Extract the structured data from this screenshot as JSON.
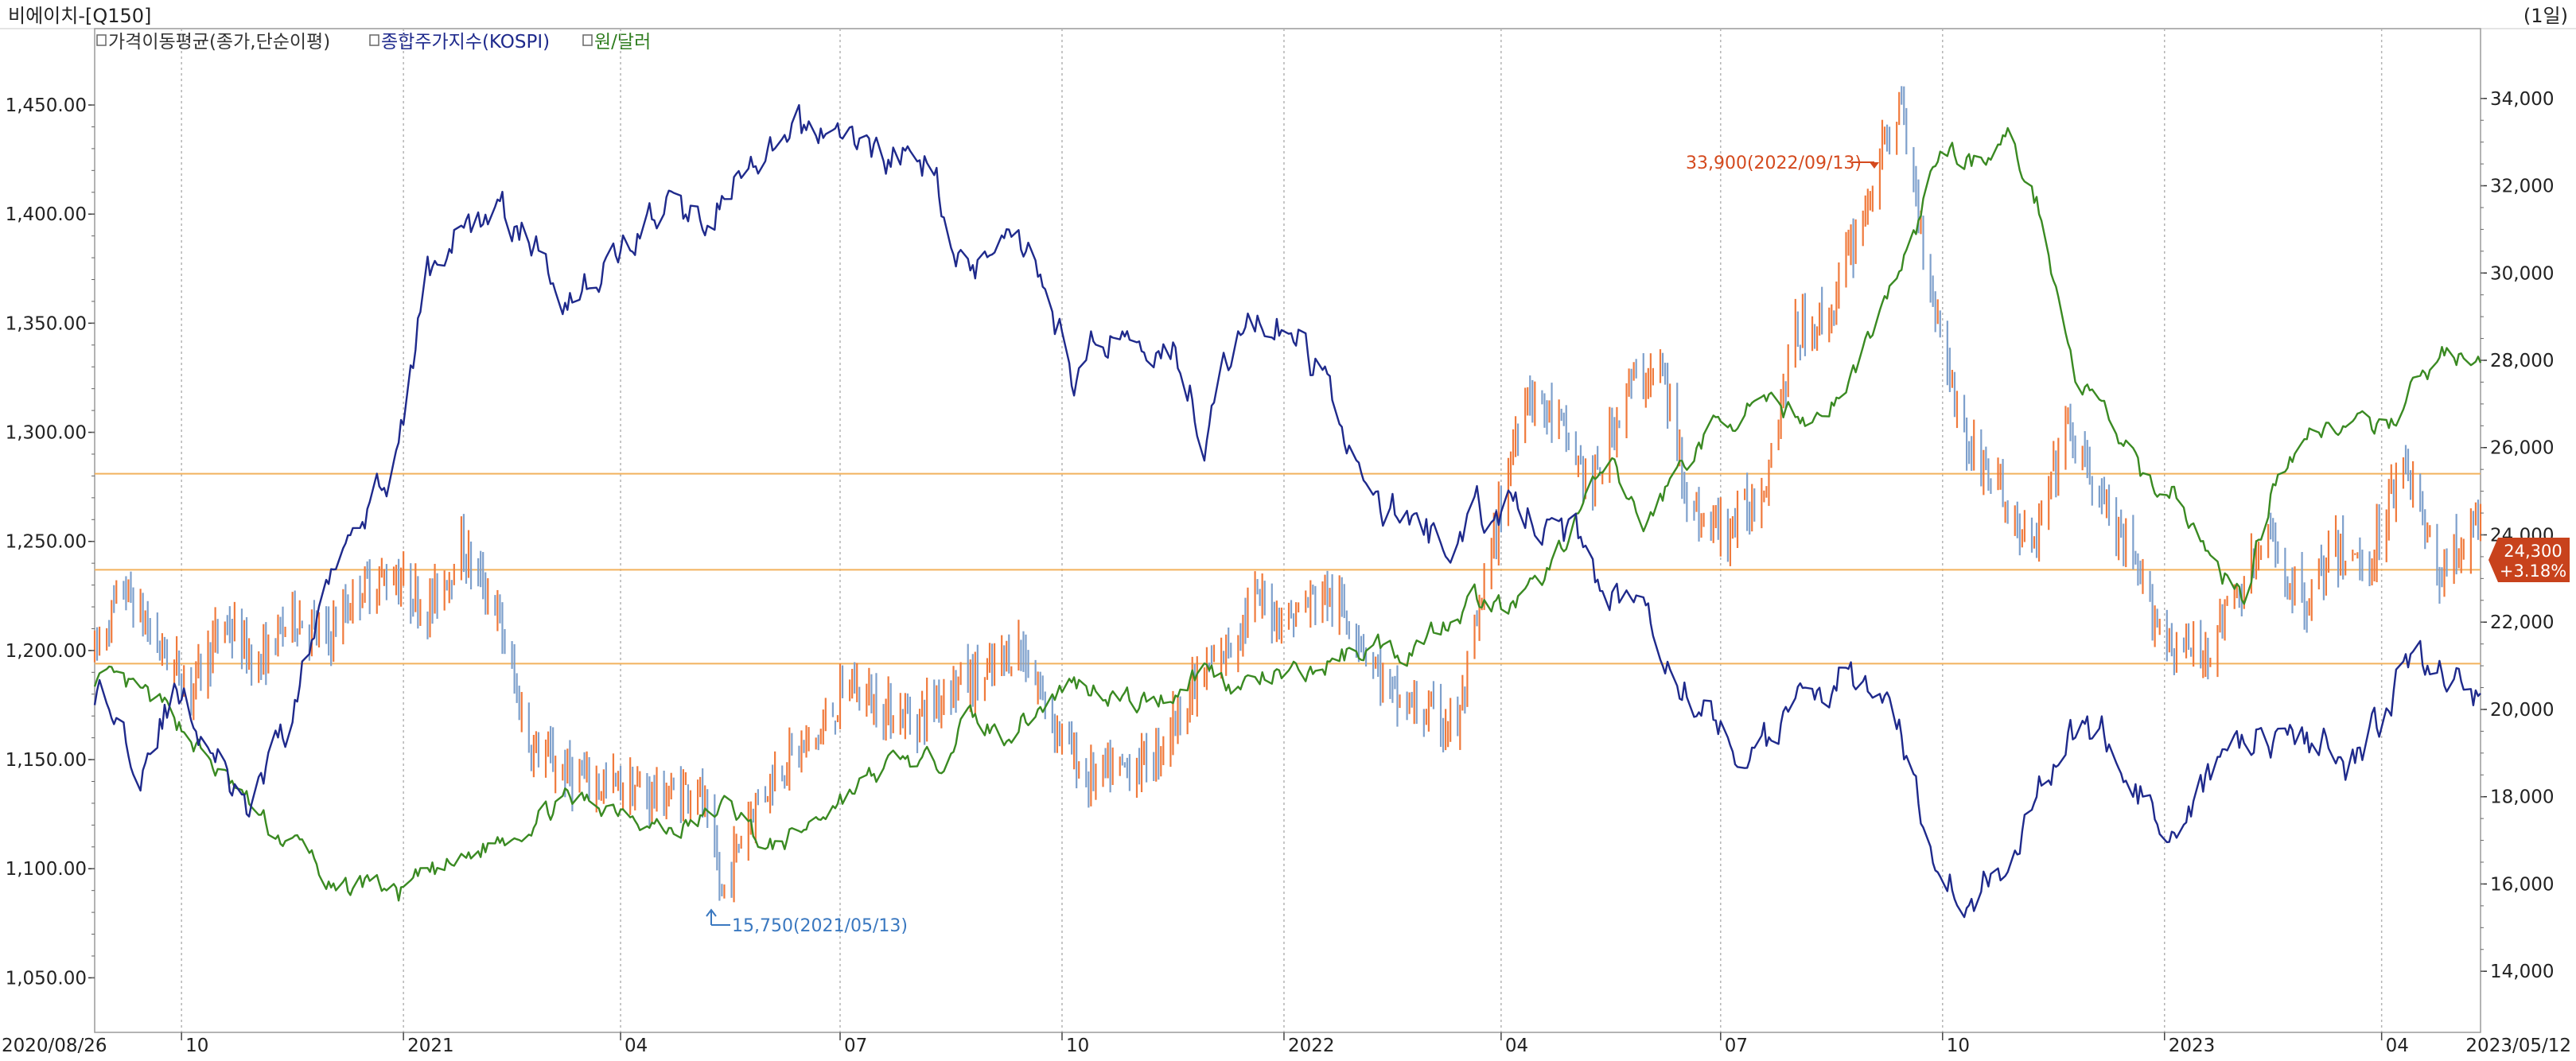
{
  "header": {
    "title": "비에이치-[Q150]",
    "period": "(1일)"
  },
  "legend": [
    {
      "label": "가격이동평균(종가,단순이평)",
      "color": "#333333"
    },
    {
      "label": "종합주가지수(KOSPI)",
      "color": "#1f2a8c"
    },
    {
      "label": "원/달러",
      "color": "#2f7d1f"
    }
  ],
  "colors": {
    "up": "#f07a3c",
    "down": "#7ea0cc",
    "kospi": "#1f2a8c",
    "usd": "#3a8a22",
    "hline": "#f2b25e",
    "annotation_high": "#d44a1e",
    "annotation_low": "#3a78c0",
    "current_price_bg": "#c8421c"
  },
  "annotations": {
    "high": "33,900(2022/09/13)",
    "low": "15,750(2021/05/13)"
  },
  "current_price": {
    "price": "24,300",
    "change": "+3.18%"
  },
  "chart_data": {
    "type": "line",
    "x_range": [
      "2020/08/26",
      "2023/05/12"
    ],
    "x_ticks": [
      "2020/08/26",
      "10",
      "2021",
      "04",
      "07",
      "10",
      "2022",
      "04",
      "07",
      "10",
      "2023",
      "04",
      "2023/05/12"
    ],
    "left_axis": {
      "series": "원/달러",
      "range": [
        1025,
        1485
      ],
      "ticks": [
        "1,450.00",
        "1,400.00",
        "1,350.00",
        "1,300.00",
        "1,250.00",
        "1,200.00",
        "1,150.00",
        "1,100.00",
        "1,050.00"
      ]
    },
    "right_axis": {
      "series": "비에이치",
      "range": [
        12600,
        35600
      ],
      "ticks": [
        "34,000",
        "32,000",
        "30,000",
        "28,000",
        "26,000",
        "24,000",
        "22,000",
        "20,000",
        "18,000",
        "16,000",
        "14,000"
      ]
    },
    "horizontal_lines": [
      25400,
      23200,
      21050
    ],
    "high": {
      "value": 33900,
      "date": "2022/09/13"
    },
    "low": {
      "value": 15750,
      "date": "2021/05/13"
    },
    "last": {
      "value": 24300,
      "change_pct": 3.18
    },
    "series": [
      {
        "name": "비에이치",
        "style": "daily price bars",
        "points": [
          [
            "2020/08/26",
            21300
          ],
          [
            "2020/09/07",
            22800
          ],
          [
            "2020/09/21",
            21500
          ],
          [
            "2020/10/05",
            20500
          ],
          [
            "2020/10/19",
            22000
          ],
          [
            "2020/11/02",
            21000
          ],
          [
            "2020/11/16",
            22200
          ],
          [
            "2020/11/30",
            21600
          ],
          [
            "2020/12/14",
            22800
          ],
          [
            "2020/12/28",
            23100
          ],
          [
            "2021/01/11",
            22300
          ],
          [
            "2021/01/25",
            23700
          ],
          [
            "2021/02/08",
            22400
          ],
          [
            "2021/02/22",
            19200
          ],
          [
            "2021/03/08",
            18600
          ],
          [
            "2021/03/22",
            18300
          ],
          [
            "2021/04/05",
            18200
          ],
          [
            "2021/04/19",
            18000
          ],
          [
            "2021/05/03",
            18300
          ],
          [
            "2021/05/13",
            15750
          ],
          [
            "2021/05/24",
            17600
          ],
          [
            "2021/06/07",
            18800
          ],
          [
            "2021/06/21",
            19300
          ],
          [
            "2021/07/05",
            20600
          ],
          [
            "2021/07/19",
            20000
          ],
          [
            "2021/08/02",
            19800
          ],
          [
            "2021/08/16",
            20600
          ],
          [
            "2021/08/30",
            20700
          ],
          [
            "2021/09/13",
            21500
          ],
          [
            "2021/09/27",
            19800
          ],
          [
            "2021/10/11",
            18400
          ],
          [
            "2021/10/25",
            18600
          ],
          [
            "2021/11/08",
            18900
          ],
          [
            "2021/11/22",
            20300
          ],
          [
            "2021/12/06",
            21200
          ],
          [
            "2021/12/20",
            22500
          ],
          [
            "2022/01/03",
            22100
          ],
          [
            "2022/01/17",
            22700
          ],
          [
            "2022/01/31",
            21900
          ],
          [
            "2022/02/14",
            20300
          ],
          [
            "2022/02/28",
            19900
          ],
          [
            "2022/03/14",
            19600
          ],
          [
            "2022/03/28",
            23600
          ],
          [
            "2022/04/11",
            27400
          ],
          [
            "2022/04/25",
            26500
          ],
          [
            "2022/05/09",
            25000
          ],
          [
            "2022/05/23",
            27400
          ],
          [
            "2022/06/06",
            27800
          ],
          [
            "2022/06/20",
            24400
          ],
          [
            "2022/07/04",
            24100
          ],
          [
            "2022/07/18",
            25000
          ],
          [
            "2022/08/01",
            28600
          ],
          [
            "2022/08/15",
            29000
          ],
          [
            "2022/08/29",
            31400
          ],
          [
            "2022/09/13",
            33900
          ],
          [
            "2022/09/26",
            29800
          ],
          [
            "2022/10/10",
            26200
          ],
          [
            "2022/10/24",
            25100
          ],
          [
            "2022/11/07",
            23500
          ],
          [
            "2022/11/21",
            26500
          ],
          [
            "2022/12/05",
            24900
          ],
          [
            "2022/12/19",
            23200
          ],
          [
            "2023/01/02",
            21600
          ],
          [
            "2023/01/16",
            21200
          ],
          [
            "2023/01/30",
            22500
          ],
          [
            "2023/02/13",
            23900
          ],
          [
            "2023/02/27",
            22400
          ],
          [
            "2023/03/13",
            23600
          ],
          [
            "2023/03/27",
            23300
          ],
          [
            "2023/04/10",
            25900
          ],
          [
            "2023/04/24",
            23100
          ],
          [
            "2023/05/12",
            24300
          ]
        ]
      },
      {
        "name": "종합주가지수(KOSPI)",
        "points": [
          [
            "2020/08/26",
            1183
          ],
          [
            "2020/09/14",
            1152
          ],
          [
            "2020/09/28",
            1180
          ],
          [
            "2020/10/13",
            1158
          ],
          [
            "2020/10/27",
            1122
          ],
          [
            "2020/11/09",
            1150
          ],
          [
            "2020/11/23",
            1198
          ],
          [
            "2020/12/04",
            1249
          ],
          [
            "2020/12/18",
            1272
          ],
          [
            "2020/12/30",
            1288
          ],
          [
            "2021/01/11",
            1374
          ],
          [
            "2021/01/25",
            1392
          ],
          [
            "2021/02/08",
            1403
          ],
          [
            "2021/02/22",
            1388
          ],
          [
            "2021/03/08",
            1365
          ],
          [
            "2021/03/22",
            1372
          ],
          [
            "2021/04/05",
            1387
          ],
          [
            "2021/04/19",
            1405
          ],
          [
            "2021/05/03",
            1397
          ],
          [
            "2021/05/17",
            1412
          ],
          [
            "2021/06/01",
            1421
          ],
          [
            "2021/06/14",
            1437
          ],
          [
            "2021/06/28",
            1440
          ],
          [
            "2021/07/12",
            1430
          ],
          [
            "2021/07/26",
            1426
          ],
          [
            "2021/08/09",
            1420
          ],
          [
            "2021/08/23",
            1371
          ],
          [
            "2021/09/06",
            1399
          ],
          [
            "2021/09/20",
            1382
          ],
          [
            "2021/10/05",
            1326
          ],
          [
            "2021/10/19",
            1345
          ],
          [
            "2021/11/01",
            1347
          ],
          [
            "2021/11/15",
            1342
          ],
          [
            "2021/11/29",
            1302
          ],
          [
            "2021/12/13",
            1347
          ],
          [
            "2021/12/27",
            1349
          ],
          [
            "2022/01/10",
            1338
          ],
          [
            "2022/01/24",
            1310
          ],
          [
            "2022/02/07",
            1263
          ],
          [
            "2022/02/21",
            1263
          ],
          [
            "2022/03/07",
            1248
          ],
          [
            "2022/03/21",
            1262
          ],
          [
            "2022/04/04",
            1267
          ],
          [
            "2022/04/18",
            1258
          ],
          [
            "2022/05/02",
            1251
          ],
          [
            "2022/05/16",
            1226
          ],
          [
            "2022/05/30",
            1230
          ],
          [
            "2022/06/13",
            1190
          ],
          [
            "2022/06/27",
            1168
          ],
          [
            "2022/07/11",
            1153
          ],
          [
            "2022/07/25",
            1160
          ],
          [
            "2022/08/08",
            1180
          ],
          [
            "2022/08/22",
            1192
          ],
          [
            "2022/09/05",
            1172
          ],
          [
            "2022/09/19",
            1148
          ],
          [
            "2022/09/30",
            1092
          ],
          [
            "2022/10/14",
            1085
          ],
          [
            "2022/10/28",
            1107
          ],
          [
            "2022/11/11",
            1145
          ],
          [
            "2022/11/25",
            1162
          ],
          [
            "2022/12/09",
            1160
          ],
          [
            "2022/12/23",
            1133
          ],
          [
            "2023/01/06",
            1104
          ],
          [
            "2023/01/20",
            1140
          ],
          [
            "2023/02/03",
            1163
          ],
          [
            "2023/02/17",
            1162
          ],
          [
            "2023/03/03",
            1158
          ],
          [
            "2023/03/17",
            1148
          ],
          [
            "2023/03/31",
            1168
          ],
          [
            "2023/04/14",
            1200
          ],
          [
            "2023/04/28",
            1185
          ],
          [
            "2023/05/12",
            1180
          ]
        ]
      },
      {
        "name": "원/달러",
        "points": [
          [
            "2020/08/26",
            1188
          ],
          [
            "2020/09/14",
            1180
          ],
          [
            "2020/09/28",
            1170
          ],
          [
            "2020/10/13",
            1148
          ],
          [
            "2020/10/27",
            1132
          ],
          [
            "2020/11/09",
            1115
          ],
          [
            "2020/11/23",
            1108
          ],
          [
            "2020/12/04",
            1086
          ],
          [
            "2020/12/18",
            1096
          ],
          [
            "2020/12/30",
            1088
          ],
          [
            "2021/01/11",
            1097
          ],
          [
            "2021/01/25",
            1103
          ],
          [
            "2021/02/08",
            1113
          ],
          [
            "2021/02/22",
            1121
          ],
          [
            "2021/03/08",
            1131
          ],
          [
            "2021/03/22",
            1130
          ],
          [
            "2021/04/05",
            1128
          ],
          [
            "2021/04/19",
            1117
          ],
          [
            "2021/05/03",
            1121
          ],
          [
            "2021/05/17",
            1130
          ],
          [
            "2021/06/01",
            1108
          ],
          [
            "2021/06/14",
            1116
          ],
          [
            "2021/06/28",
            1130
          ],
          [
            "2021/07/12",
            1140
          ],
          [
            "2021/07/26",
            1150
          ],
          [
            "2021/08/09",
            1147
          ],
          [
            "2021/08/23",
            1170
          ],
          [
            "2021/09/06",
            1161
          ],
          [
            "2021/09/20",
            1172
          ],
          [
            "2021/10/05",
            1186
          ],
          [
            "2021/10/19",
            1182
          ],
          [
            "2021/11/01",
            1175
          ],
          [
            "2021/11/15",
            1180
          ],
          [
            "2021/11/29",
            1192
          ],
          [
            "2021/12/13",
            1184
          ],
          [
            "2021/12/27",
            1188
          ],
          [
            "2022/01/10",
            1188
          ],
          [
            "2022/01/24",
            1197
          ],
          [
            "2022/02/07",
            1203
          ],
          [
            "2022/02/21",
            1200
          ],
          [
            "2022/03/07",
            1212
          ],
          [
            "2022/03/21",
            1225
          ],
          [
            "2022/04/04",
            1218
          ],
          [
            "2022/04/18",
            1230
          ],
          [
            "2022/05/02",
            1262
          ],
          [
            "2022/05/16",
            1285
          ],
          [
            "2022/05/30",
            1256
          ],
          [
            "2022/06/13",
            1283
          ],
          [
            "2022/06/27",
            1301
          ],
          [
            "2022/07/11",
            1310
          ],
          [
            "2022/07/25",
            1311
          ],
          [
            "2022/08/08",
            1306
          ],
          [
            "2022/08/22",
            1319
          ],
          [
            "2022/09/05",
            1355
          ],
          [
            "2022/09/19",
            1388
          ],
          [
            "2022/09/30",
            1430
          ],
          [
            "2022/10/14",
            1425
          ],
          [
            "2022/10/28",
            1436
          ],
          [
            "2022/11/11",
            1400
          ],
          [
            "2022/11/25",
            1325
          ],
          [
            "2022/12/09",
            1306
          ],
          [
            "2022/12/23",
            1278
          ],
          [
            "2023/01/06",
            1273
          ],
          [
            "2023/01/20",
            1240
          ],
          [
            "2023/02/03",
            1225
          ],
          [
            "2023/02/17",
            1283
          ],
          [
            "2023/03/03",
            1303
          ],
          [
            "2023/03/17",
            1302
          ],
          [
            "2023/03/31",
            1300
          ],
          [
            "2023/04/14",
            1319
          ],
          [
            "2023/04/28",
            1338
          ],
          [
            "2023/05/12",
            1328
          ]
        ]
      }
    ]
  }
}
